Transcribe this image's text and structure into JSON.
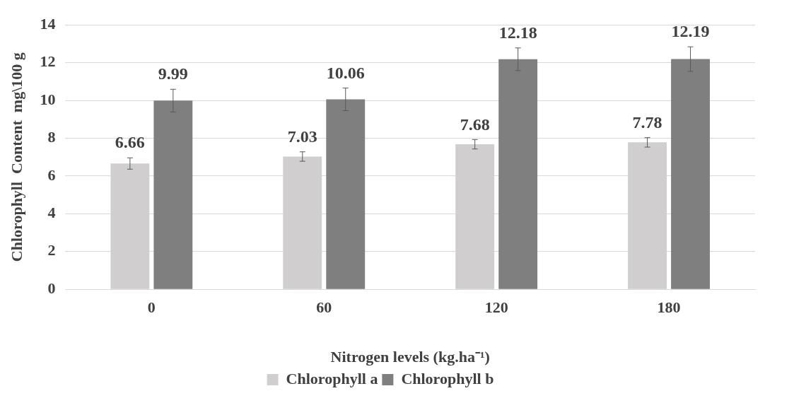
{
  "chart_data": {
    "type": "bar",
    "xlabel": "Nitrogen levels (kg.ha⁻¹)",
    "ylabel": "Chlorophyll  Content  mg\\100 g",
    "categories": [
      "0",
      "60",
      "120",
      "180"
    ],
    "series": [
      {
        "name": "Chlorophyll a",
        "color": "#d0cece",
        "values": [
          6.66,
          7.03,
          7.68,
          7.78
        ],
        "errors": [
          0.3,
          0.25,
          0.25,
          0.25
        ]
      },
      {
        "name": "Chlorophyll b",
        "color": "#7f7f7f",
        "values": [
          9.99,
          10.06,
          12.18,
          12.19
        ],
        "errors": [
          0.6,
          0.6,
          0.6,
          0.65
        ]
      }
    ],
    "ylim": [
      0,
      14
    ],
    "yticks": [
      0,
      2,
      4,
      6,
      8,
      10,
      12,
      14
    ],
    "grid": "y",
    "legend": "bottom",
    "data_labels": true
  }
}
